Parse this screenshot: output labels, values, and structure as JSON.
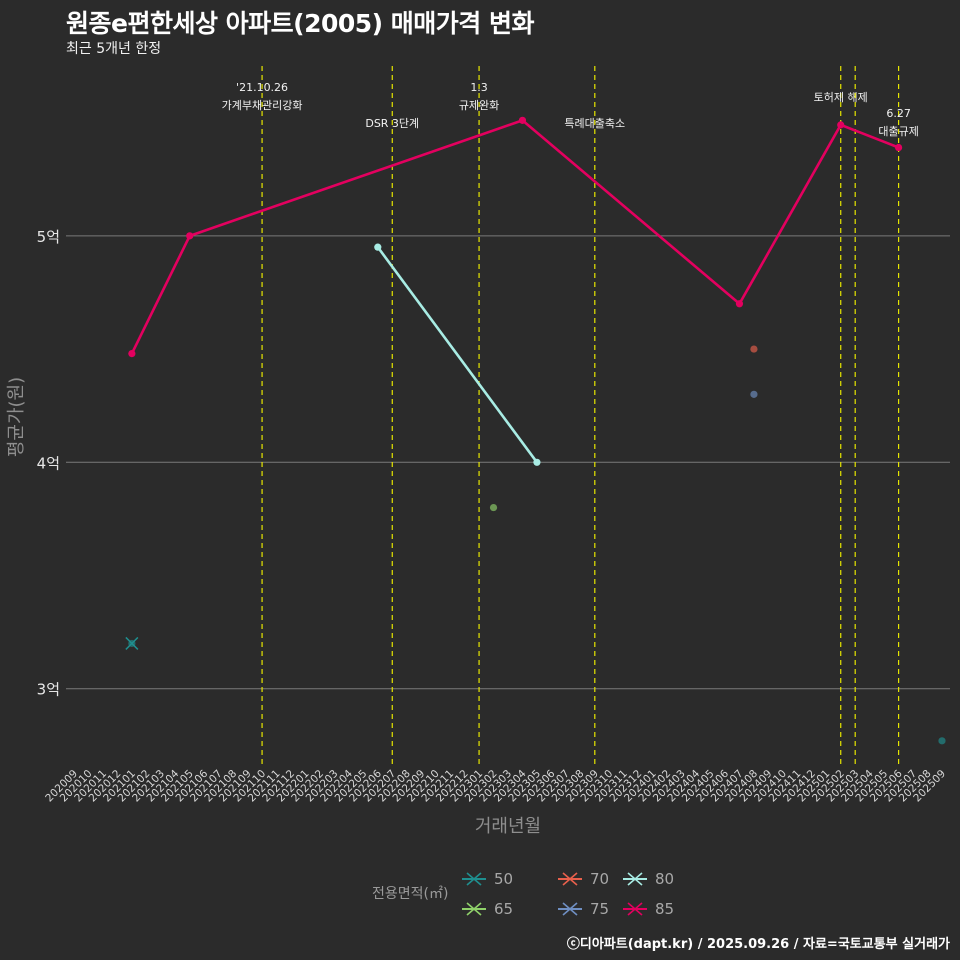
{
  "title": "원종e편한세상 아파트(2005) 매매가격 변화",
  "subtitle": "최근 5개년 한정",
  "caption": "ⓒ디아파트(dapt.kr) / 2025.09.26 / 자료=국토교통부 실거래가",
  "legend": {
    "title": "전용면적(㎡)",
    "items": [
      {
        "label": "50",
        "color": "#1f8f8f"
      },
      {
        "label": "65",
        "color": "#8fd16a"
      },
      {
        "label": "70",
        "color": "#e8604c"
      },
      {
        "label": "75",
        "color": "#6f8fc2"
      },
      {
        "label": "80",
        "color": "#a8ece4"
      },
      {
        "label": "85",
        "color": "#e3005f"
      }
    ]
  },
  "chart_data": {
    "type": "line",
    "xlabel": "거래년월",
    "ylabel": "평균가(원)",
    "x_categories": [
      "202009",
      "202010",
      "202011",
      "202012",
      "202101",
      "202102",
      "202103",
      "202104",
      "202105",
      "202106",
      "202107",
      "202108",
      "202109",
      "202110",
      "202111",
      "202112",
      "202201",
      "202202",
      "202203",
      "202204",
      "202205",
      "202206",
      "202207",
      "202208",
      "202209",
      "202210",
      "202211",
      "202212",
      "202301",
      "202302",
      "202303",
      "202304",
      "202305",
      "202306",
      "202307",
      "202308",
      "202309",
      "202310",
      "202311",
      "202312",
      "202401",
      "202402",
      "202403",
      "202404",
      "202405",
      "202406",
      "202407",
      "202408",
      "202409",
      "202410",
      "202411",
      "202412",
      "202501",
      "202502",
      "202503",
      "202504",
      "202505",
      "202506",
      "202507",
      "202508",
      "202509"
    ],
    "y_ticks": [
      {
        "value": 300000000,
        "label": "3억"
      },
      {
        "value": 400000000,
        "label": "4억"
      },
      {
        "value": 500000000,
        "label": "5억"
      }
    ],
    "ylim": [
      265000000,
      575000000
    ],
    "grid": true,
    "series": [
      {
        "name": "50",
        "color": "#1f8f8f",
        "points": [
          [
            "202101",
            320000000
          ],
          [
            "202509",
            277000000
          ]
        ]
      },
      {
        "name": "65",
        "color": "#8fd16a",
        "points": [
          [
            "202302",
            380000000
          ]
        ]
      },
      {
        "name": "70",
        "color": "#e8604c",
        "points": [
          [
            "202408",
            450000000
          ]
        ]
      },
      {
        "name": "75",
        "color": "#6f8fc2",
        "points": [
          [
            "202408",
            430000000
          ]
        ]
      },
      {
        "name": "80",
        "color": "#a8ece4",
        "points": [
          [
            "202206",
            495000000
          ],
          [
            "202305",
            400000000
          ]
        ]
      },
      {
        "name": "85",
        "color": "#e3005f",
        "points": [
          [
            "202101",
            448000000
          ],
          [
            "202105",
            500000000
          ],
          [
            "202304",
            551000000
          ],
          [
            "202407",
            470000000
          ],
          [
            "202502",
            549000000
          ],
          [
            "202506",
            539000000
          ]
        ]
      }
    ],
    "events": [
      {
        "x": "202110",
        "lines": [
          "'21.10.26",
          "가계부채관리강화"
        ],
        "row": "top"
      },
      {
        "x": "202207",
        "lines": [
          "DSR 3단계"
        ],
        "row": "low"
      },
      {
        "x": "202301",
        "lines": [
          "1.3",
          "규제완화"
        ],
        "row": "top"
      },
      {
        "x": "202309",
        "lines": [
          "특례대출축소"
        ],
        "row": "low"
      },
      {
        "x": "202502",
        "lines": [
          "토허제 해제"
        ],
        "row": "mid"
      },
      {
        "x": "202503",
        "lines": [],
        "row": "mid"
      },
      {
        "x": "202506",
        "lines": [
          "6.27",
          "대출규제"
        ],
        "row": "low2"
      }
    ]
  }
}
